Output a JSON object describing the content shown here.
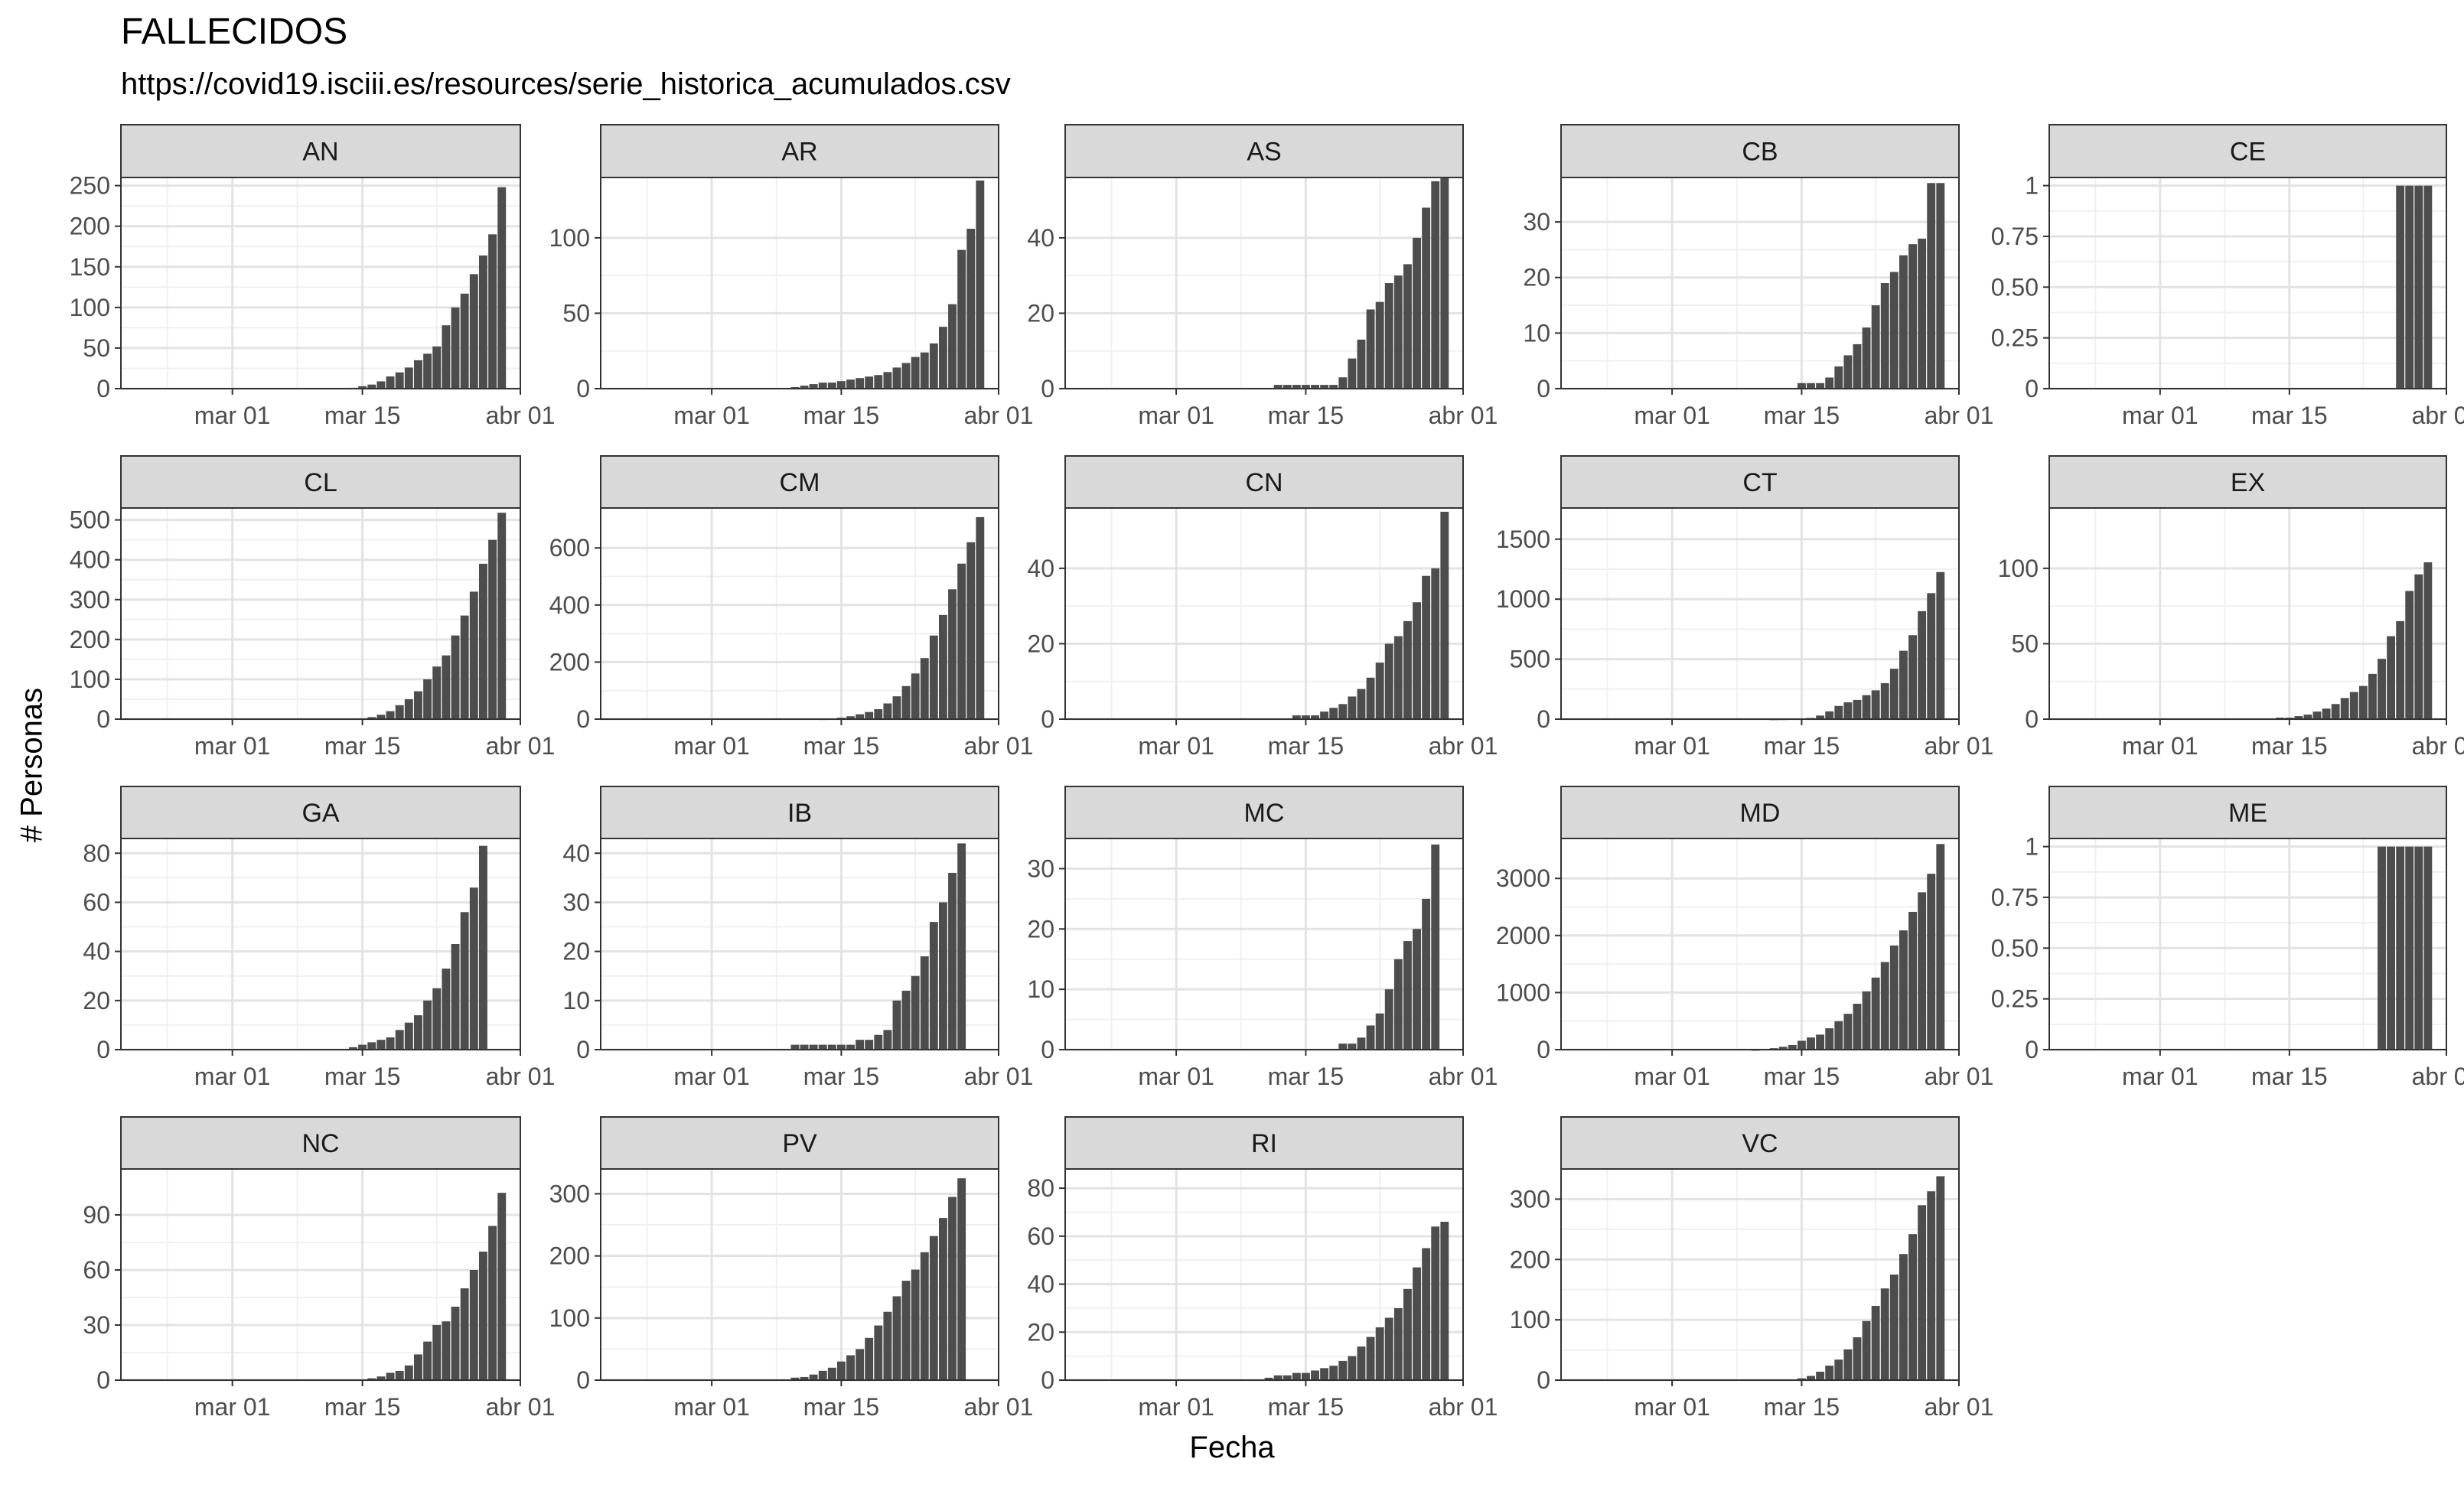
{
  "chart_data": {
    "type": "bar",
    "title": "FALLECIDOS",
    "subtitle": "https://covid19.isciii.es/resources/serie_historica_acumulados.csv",
    "xlabel": "Fecha",
    "ylabel": "# Personas",
    "x_tick_labels": [
      "mar 01",
      "mar 15",
      "abr 01"
    ],
    "dates": [
      "2020-03-08",
      "2020-03-09",
      "2020-03-10",
      "2020-03-11",
      "2020-03-12",
      "2020-03-13",
      "2020-03-14",
      "2020-03-15",
      "2020-03-16",
      "2020-03-17",
      "2020-03-18",
      "2020-03-19",
      "2020-03-20",
      "2020-03-21",
      "2020-03-22",
      "2020-03-23",
      "2020-03-24",
      "2020-03-25",
      "2020-03-26",
      "2020-03-27",
      "2020-03-28",
      "2020-03-29",
      "2020-03-30"
    ],
    "x_range": [
      "2020-02-18",
      "2020-04-01"
    ],
    "grid": true,
    "legend": "none",
    "bar_color": "#4d4d4d",
    "panels": [
      {
        "name": "AN",
        "yticks": [
          0,
          50,
          100,
          150,
          200,
          250
        ],
        "ylim": [
          0,
          260
        ],
        "values": [
          null,
          null,
          null,
          null,
          null,
          null,
          1,
          3,
          5,
          9,
          15,
          20,
          26,
          35,
          43,
          52,
          78,
          100,
          117,
          141,
          164,
          190,
          248
        ]
      },
      {
        "name": "AR",
        "yticks": [
          0,
          50,
          100
        ],
        "ylim": [
          0,
          140
        ],
        "values": [
          null,
          null,
          1,
          2,
          3,
          4,
          4,
          5,
          6,
          7,
          8,
          9,
          11,
          14,
          17,
          21,
          24,
          30,
          41,
          56,
          92,
          106,
          138
        ]
      },
      {
        "name": "AS",
        "yticks": [
          0,
          20,
          40
        ],
        "ylim": [
          0,
          56
        ],
        "values": [
          null,
          null,
          null,
          null,
          1,
          1,
          1,
          1,
          1,
          1,
          1,
          3,
          8,
          13,
          21,
          23,
          28,
          30,
          33,
          40,
          48,
          55,
          56
        ]
      },
      {
        "name": "CB",
        "yticks": [
          0,
          10,
          20,
          30
        ],
        "ylim": [
          0,
          38
        ],
        "values": [
          null,
          null,
          null,
          null,
          null,
          null,
          null,
          1,
          1,
          1,
          2,
          4,
          6,
          8,
          11,
          15,
          19,
          21,
          24,
          26,
          27,
          37,
          37
        ]
      },
      {
        "name": "CE",
        "yticks": [
          0,
          0.25,
          0.5,
          0.75,
          1
        ],
        "ylim": [
          0,
          1.04
        ],
        "values": [
          null,
          null,
          null,
          null,
          null,
          null,
          null,
          null,
          null,
          null,
          null,
          null,
          null,
          null,
          null,
          null,
          null,
          null,
          null,
          1,
          1,
          1,
          1
        ]
      },
      {
        "name": "CL",
        "yticks": [
          0,
          100,
          200,
          300,
          400,
          500
        ],
        "ylim": [
          0,
          530
        ],
        "values": [
          null,
          null,
          null,
          null,
          null,
          null,
          1,
          2,
          5,
          11,
          20,
          35,
          50,
          70,
          100,
          132,
          160,
          210,
          260,
          320,
          390,
          450,
          518
        ]
      },
      {
        "name": "CM",
        "yticks": [
          0,
          200,
          400,
          600
        ],
        "ylim": [
          0,
          740
        ],
        "values": [
          null,
          null,
          null,
          null,
          null,
          1,
          2,
          5,
          10,
          17,
          25,
          35,
          55,
          80,
          116,
          160,
          214,
          293,
          365,
          455,
          545,
          620,
          708
        ]
      },
      {
        "name": "CN",
        "yticks": [
          0,
          20,
          40
        ],
        "ylim": [
          0,
          56
        ],
        "values": [
          null,
          null,
          null,
          null,
          null,
          null,
          1,
          1,
          1,
          2,
          3,
          4,
          6,
          8,
          11,
          15,
          20,
          22,
          26,
          31,
          38,
          40,
          55
        ]
      },
      {
        "name": "CT",
        "yticks": [
          0,
          500,
          1000,
          1500
        ],
        "ylim": [
          0,
          1760
        ],
        "values": [
          null,
          null,
          null,
          null,
          1,
          2,
          3,
          5,
          10,
          30,
          65,
          110,
          140,
          160,
          200,
          240,
          300,
          420,
          570,
          700,
          900,
          1050,
          1226
        ]
      },
      {
        "name": "EX",
        "yticks": [
          0,
          50,
          100
        ],
        "ylim": [
          0,
          140
        ],
        "values": [
          null,
          null,
          null,
          null,
          null,
          null,
          1,
          1,
          2,
          3,
          5,
          7,
          10,
          14,
          18,
          22,
          30,
          40,
          55,
          65,
          85,
          96,
          104
        ]
      },
      {
        "name": "GA",
        "yticks": [
          0,
          20,
          40,
          60,
          80
        ],
        "ylim": [
          0,
          86
        ],
        "values": [
          null,
          null,
          null,
          null,
          null,
          null,
          1,
          2,
          3,
          4,
          5,
          8,
          11,
          14,
          20,
          25,
          33,
          43,
          56,
          66,
          83,
          null,
          null
        ]
      },
      {
        "name": "IB",
        "yticks": [
          0,
          10,
          20,
          30,
          40
        ],
        "ylim": [
          0,
          43
        ],
        "values": [
          null,
          null,
          1,
          1,
          1,
          1,
          1,
          1,
          1,
          2,
          2,
          3,
          4,
          10,
          12,
          15,
          19,
          26,
          30,
          36,
          42,
          null,
          null
        ]
      },
      {
        "name": "MC",
        "yticks": [
          0,
          10,
          20,
          30
        ],
        "ylim": [
          0,
          35
        ],
        "values": [
          null,
          null,
          null,
          null,
          null,
          null,
          null,
          null,
          null,
          null,
          null,
          1,
          1,
          2,
          4,
          6,
          10,
          15,
          18,
          20,
          25,
          34,
          null
        ]
      },
      {
        "name": "MD",
        "yticks": [
          0,
          1000,
          2000,
          3000
        ],
        "ylim": [
          0,
          3700
        ],
        "values": [
          null,
          null,
          1,
          10,
          25,
          50,
          81,
          155,
          213,
          263,
          374,
          498,
          628,
          804,
          1021,
          1263,
          1535,
          1825,
          2090,
          2414,
          2757,
          3082,
          3603
        ]
      },
      {
        "name": "ME",
        "yticks": [
          0,
          0.25,
          0.5,
          0.75,
          1
        ],
        "ylim": [
          0,
          1.04
        ],
        "values": [
          null,
          null,
          null,
          null,
          null,
          null,
          null,
          null,
          null,
          null,
          null,
          null,
          null,
          null,
          null,
          null,
          null,
          1,
          1,
          1,
          1,
          1,
          1
        ]
      },
      {
        "name": "NC",
        "yticks": [
          0,
          30,
          60,
          90
        ],
        "ylim": [
          0,
          115
        ],
        "values": [
          null,
          null,
          null,
          null,
          null,
          null,
          null,
          null,
          1,
          2,
          4,
          5,
          8,
          14,
          21,
          30,
          32,
          40,
          50,
          60,
          70,
          84,
          102
        ]
      },
      {
        "name": "PV",
        "yticks": [
          0,
          100,
          200,
          300
        ],
        "ylim": [
          0,
          340
        ],
        "values": [
          null,
          null,
          4,
          5,
          9,
          15,
          20,
          30,
          40,
          50,
          68,
          88,
          110,
          135,
          160,
          178,
          206,
          232,
          261,
          295,
          325,
          null,
          null
        ]
      },
      {
        "name": "RI",
        "yticks": [
          0,
          20,
          40,
          60,
          80
        ],
        "ylim": [
          0,
          88
        ],
        "values": [
          null,
          null,
          null,
          1,
          2,
          2,
          3,
          3,
          4,
          5,
          6,
          8,
          10,
          14,
          18,
          22,
          26,
          30,
          38,
          47,
          55,
          64,
          66
        ]
      },
      {
        "name": "VC",
        "yticks": [
          0,
          100,
          200,
          300
        ],
        "ylim": [
          0,
          350
        ],
        "values": [
          null,
          null,
          null,
          null,
          null,
          null,
          1,
          3,
          7,
          14,
          24,
          34,
          51,
          71,
          98,
          123,
          152,
          175,
          209,
          242,
          290,
          313,
          338
        ]
      }
    ]
  }
}
